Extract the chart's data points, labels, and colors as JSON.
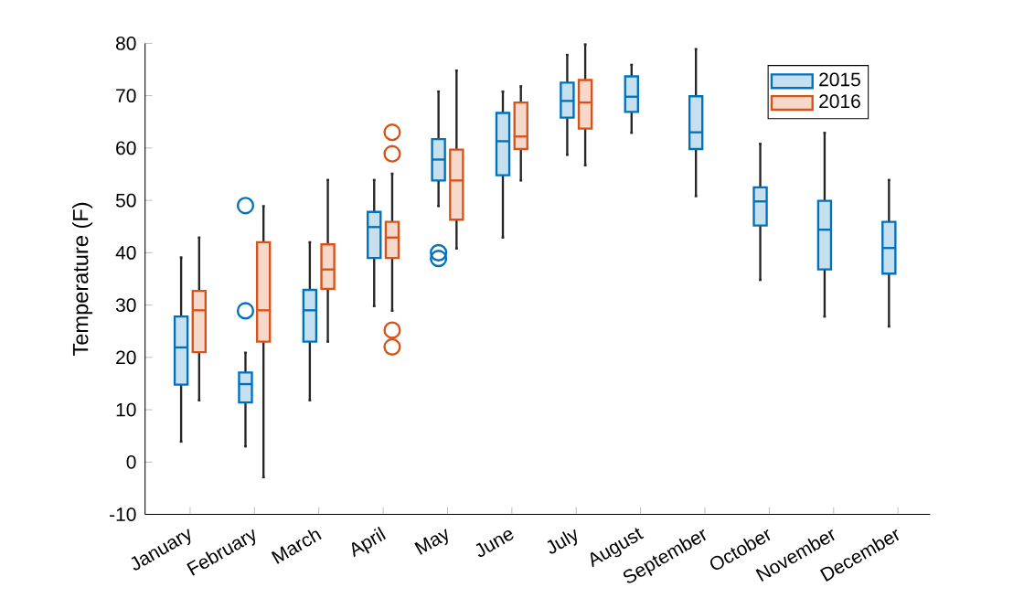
{
  "chart_data": {
    "type": "box",
    "ylabel": "Temperature (F)",
    "categories": [
      "January",
      "February",
      "March",
      "April",
      "May",
      "June",
      "July",
      "August",
      "September",
      "October",
      "November",
      "December"
    ],
    "ylim": [
      -10,
      80
    ],
    "yticks": [
      -10,
      0,
      10,
      20,
      30,
      40,
      50,
      60,
      70,
      80
    ],
    "legend": "top right",
    "grid": false,
    "series": [
      {
        "name": "2015",
        "color": "#0072bd",
        "boxes": [
          {
            "low": 3.9,
            "q1": 14.8,
            "median": 21.9,
            "q3": 27.8,
            "high": 39.1
          },
          {
            "low": 3.0,
            "q1": 11.4,
            "median": 14.9,
            "q3": 17.1,
            "high": 20.9,
            "outliers": [
              49.0,
              28.9
            ]
          },
          {
            "low": 11.8,
            "q1": 23.0,
            "median": 29.0,
            "q3": 32.9,
            "high": 42.0
          },
          {
            "low": 29.8,
            "q1": 39.0,
            "median": 44.9,
            "q3": 47.8,
            "high": 53.9
          },
          {
            "low": 48.9,
            "q1": 53.8,
            "median": 57.8,
            "q3": 61.7,
            "high": 70.8,
            "outliers": [
              40.0,
              38.9
            ]
          },
          {
            "low": 42.9,
            "q1": 54.8,
            "median": 61.3,
            "q3": 66.7,
            "high": 70.8
          },
          {
            "low": 58.7,
            "q1": 65.8,
            "median": 69.0,
            "q3": 72.5,
            "high": 77.8
          },
          {
            "low": 62.9,
            "q1": 66.9,
            "median": 69.8,
            "q3": 73.7,
            "high": 75.9
          },
          {
            "low": 50.8,
            "q1": 59.8,
            "median": 63.0,
            "q3": 69.9,
            "high": 78.9
          },
          {
            "low": 34.8,
            "q1": 45.2,
            "median": 49.8,
            "q3": 52.5,
            "high": 60.8
          },
          {
            "low": 27.8,
            "q1": 36.8,
            "median": 44.4,
            "q3": 49.9,
            "high": 62.9
          },
          {
            "low": 25.9,
            "q1": 36.0,
            "median": 40.9,
            "q3": 45.9,
            "high": 53.9
          }
        ]
      },
      {
        "name": "2016",
        "color": "#d95319",
        "boxes": [
          {
            "low": 11.8,
            "q1": 21.0,
            "median": 29.0,
            "q3": 32.7,
            "high": 42.9
          },
          {
            "low": -2.9,
            "q1": 23.0,
            "median": 29.0,
            "q3": 42.0,
            "high": 48.9
          },
          {
            "low": 23.0,
            "q1": 33.1,
            "median": 36.8,
            "q3": 41.6,
            "high": 53.9
          },
          {
            "low": 28.9,
            "q1": 39.0,
            "median": 42.9,
            "q3": 45.9,
            "high": 55.1,
            "outliers": [
              63.0,
              58.9,
              25.2,
              22.0
            ]
          },
          {
            "low": 40.8,
            "q1": 46.3,
            "median": 53.8,
            "q3": 59.7,
            "high": 74.8
          },
          {
            "low": 53.8,
            "q1": 59.8,
            "median": 62.2,
            "q3": 68.7,
            "high": 71.8
          },
          {
            "low": 56.7,
            "q1": 63.7,
            "median": 68.7,
            "q3": 73.0,
            "high": 79.8
          },
          null,
          null,
          null,
          null,
          null
        ]
      }
    ]
  }
}
